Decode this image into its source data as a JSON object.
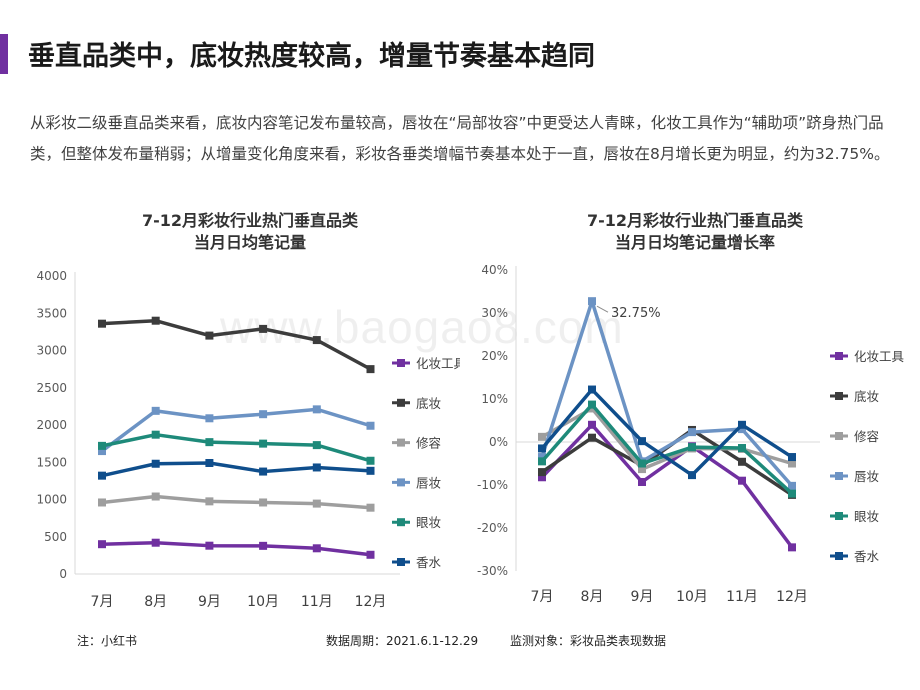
{
  "page": {
    "title": "垂直品类中，底妆热度较高，增量节奏基本趋同",
    "intro": "从彩妆二级垂直品类来看，底妆内容笔记发布量较高，唇妆在“局部妆容”中更受达人青睐，化妆工具作为“辅助项”跻身热门品类，但整体发布量稍弱；从增量变化角度来看，彩妆各垂类增幅节奏基本处于一直，唇妆在8月增长更为明显，约为32.75%。",
    "accent_color": "#7030a0",
    "watermark": "www.baogao8.com"
  },
  "footer": {
    "source": "注：小红书",
    "period": "数据周期：2021.6.1-12.29",
    "subject": "监测对象：彩妆品类表现数据"
  },
  "chart_data": [
    {
      "type": "line",
      "title": [
        "7-12月彩妆行业热门垂直品类",
        "当月日均笔记量"
      ],
      "categories": [
        "7月",
        "8月",
        "9月",
        "10月",
        "11月",
        "12月"
      ],
      "ylim": [
        0,
        4000
      ],
      "yticks": [
        0,
        500,
        1000,
        1500,
        2000,
        2500,
        3000,
        3500,
        4000
      ],
      "ytick_labels": [
        "0",
        "500",
        "1000",
        "1500",
        "2000",
        "2500",
        "3000",
        "3500",
        "4000"
      ],
      "grid": false,
      "legend": "right",
      "series": [
        {
          "name": "化妆工具",
          "color": "#7030a0",
          "values": [
            400,
            420,
            380,
            378,
            345,
            258
          ]
        },
        {
          "name": "底妆",
          "color": "#3c3c3c",
          "values": [
            3360,
            3400,
            3200,
            3290,
            3140,
            2750
          ]
        },
        {
          "name": "修容",
          "color": "#9e9e9e",
          "values": [
            960,
            1040,
            975,
            960,
            945,
            890
          ]
        },
        {
          "name": "唇妆",
          "color": "#6c93c4",
          "values": [
            1650,
            2190,
            2090,
            2145,
            2210,
            1990
          ]
        },
        {
          "name": "眼妆",
          "color": "#1e8a7a",
          "values": [
            1720,
            1870,
            1770,
            1750,
            1730,
            1520
          ]
        },
        {
          "name": "香水",
          "color": "#0f4e8c",
          "values": [
            1320,
            1480,
            1490,
            1375,
            1430,
            1385
          ]
        }
      ]
    },
    {
      "type": "line",
      "title": [
        "7-12月彩妆行业热门垂直品类",
        "当月日均笔记量增长率"
      ],
      "categories": [
        "7月",
        "8月",
        "9月",
        "10月",
        "11月",
        "12月"
      ],
      "ylim": [
        -30,
        40
      ],
      "yticks": [
        -30,
        -20,
        -10,
        0,
        10,
        20,
        30,
        40
      ],
      "ytick_labels": [
        "-30%",
        "-20%",
        "-10%",
        "0%",
        "10%",
        "20%",
        "30%",
        "40%"
      ],
      "grid": false,
      "legend": "right",
      "annotation": {
        "series": "唇妆",
        "index": 1,
        "text": "32.75%"
      },
      "series": [
        {
          "name": "化妆工具",
          "color": "#7030a0",
          "values": [
            -8.2,
            4.0,
            -9.3,
            -1.0,
            -9.0,
            -24.5
          ]
        },
        {
          "name": "底妆",
          "color": "#3c3c3c",
          "values": [
            -7.0,
            1.0,
            -5.5,
            2.8,
            -4.6,
            -12.3
          ]
        },
        {
          "name": "修容",
          "color": "#9e9e9e",
          "values": [
            1.2,
            7.8,
            -6.3,
            -1.5,
            -1.6,
            -5.0
          ]
        },
        {
          "name": "唇妆",
          "color": "#6c93c4",
          "values": [
            -3.5,
            32.75,
            -4.5,
            2.3,
            3.0,
            -10.2
          ]
        },
        {
          "name": "眼妆",
          "color": "#1e8a7a",
          "values": [
            -4.5,
            8.7,
            -5.0,
            -1.2,
            -1.4,
            -12.0
          ]
        },
        {
          "name": "香水",
          "color": "#0f4e8c",
          "values": [
            -1.5,
            12.2,
            0.2,
            -7.7,
            4.0,
            -3.5
          ]
        }
      ]
    }
  ]
}
